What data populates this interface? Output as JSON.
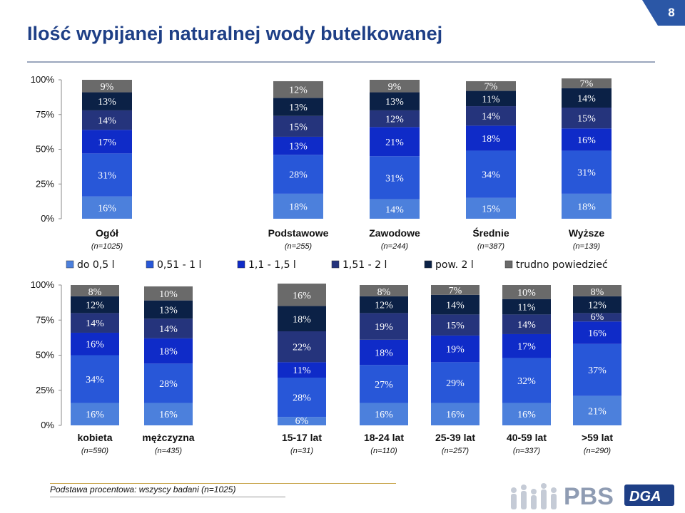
{
  "title": "Ilość wypijanej naturalnej wody butelkowanej",
  "page_number": "8",
  "footnote": "Podstawa procentowa: wszyscy badani (n=1025)",
  "logo": {
    "pbs": "PBS",
    "dga": "DGA"
  },
  "legend": [
    "do 0,5 l",
    "0,51 - 1 l",
    "1,1 - 1,5 l",
    "1,51 - 2 l",
    "pow. 2 l",
    "trudno powiedzieć"
  ],
  "colors": [
    "#4c80dc",
    "#2857d8",
    "#0f2bc8",
    "#25347c",
    "#0b2146",
    "#6a6a6a"
  ],
  "chart_data": [
    {
      "type": "bar",
      "stacked": true,
      "categories": [
        "Ogół",
        "Podstawowe",
        "Zawodowe",
        "Średnie",
        "Wyższe"
      ],
      "category_notes": [
        "(n=1025)",
        "(n=255)",
        "(n=244)",
        "(n=387)",
        "(n=139)"
      ],
      "yticks": [
        "0%",
        "25%",
        "50%",
        "75%",
        "100%"
      ],
      "ylim": [
        0,
        100
      ],
      "series": [
        {
          "name": "do 0,5 l",
          "values": [
            16,
            18,
            14,
            15,
            18
          ]
        },
        {
          "name": "0,51 - 1 l",
          "values": [
            31,
            28,
            31,
            34,
            31
          ]
        },
        {
          "name": "1,1 - 1,5 l",
          "values": [
            17,
            13,
            21,
            18,
            16
          ]
        },
        {
          "name": "1,51 - 2 l",
          "values": [
            14,
            15,
            12,
            14,
            15
          ]
        },
        {
          "name": "pow. 2 l",
          "values": [
            13,
            13,
            13,
            11,
            14
          ]
        },
        {
          "name": "trudno powiedzieć",
          "values": [
            9,
            12,
            9,
            7,
            7
          ]
        }
      ]
    },
    {
      "type": "bar",
      "stacked": true,
      "categories": [
        "kobieta",
        "mężczyzna",
        "15-17 lat",
        "18-24 lat",
        "25-39 lat",
        "40-59 lat",
        ">59 lat"
      ],
      "category_notes": [
        "(n=590)",
        "(n=435)",
        "(n=31)",
        "(n=110)",
        "(n=257)",
        "(n=337)",
        "(n=290)"
      ],
      "yticks": [
        "0%",
        "25%",
        "50%",
        "75%",
        "100%"
      ],
      "ylim": [
        0,
        100
      ],
      "series": [
        {
          "name": "do 0,5 l",
          "values": [
            16,
            16,
            6,
            16,
            16,
            16,
            21
          ]
        },
        {
          "name": "0,51 - 1 l",
          "values": [
            34,
            28,
            28,
            27,
            29,
            32,
            37
          ]
        },
        {
          "name": "1,1 - 1,5 l",
          "values": [
            16,
            18,
            11,
            18,
            19,
            17,
            16
          ]
        },
        {
          "name": "1,51 - 2 l",
          "values": [
            14,
            14,
            22,
            19,
            15,
            14,
            6
          ]
        },
        {
          "name": "pow. 2 l",
          "values": [
            12,
            13,
            18,
            12,
            14,
            11,
            12
          ]
        },
        {
          "name": "trudno powiedzieć",
          "values": [
            8,
            10,
            16,
            8,
            7,
            10,
            8
          ]
        }
      ]
    }
  ]
}
